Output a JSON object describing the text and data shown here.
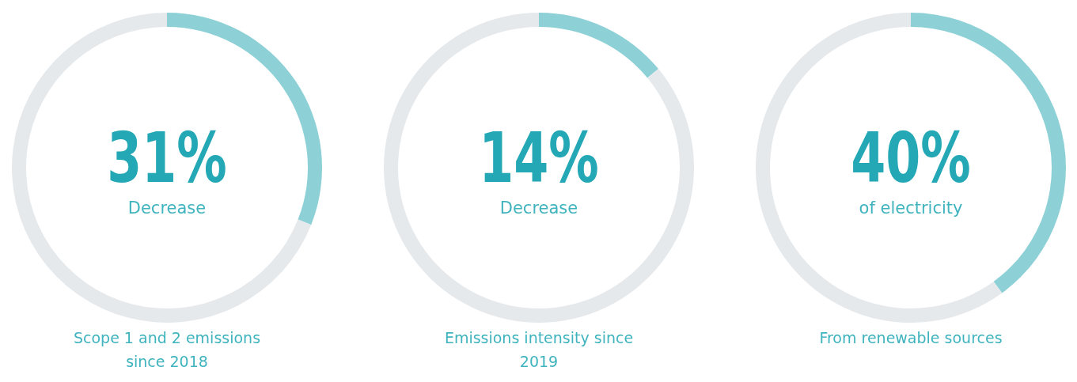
{
  "chart_data": [
    {
      "type": "donut",
      "categories": [
        null,
        null
      ],
      "values": [
        31,
        69
      ],
      "colors": [
        "#8dd1d7",
        "#e6e9ec"
      ],
      "value_labels": [
        "31%",
        null
      ],
      "subtitle": "Decrease",
      "annotations": [
        "Scope 1 and 2 emissions since 2018"
      ]
    },
    {
      "type": "donut",
      "categories": [
        null,
        null
      ],
      "values": [
        14,
        86
      ],
      "colors": [
        "#8dd1d7",
        "#e6e9ec"
      ],
      "value_labels": [
        "14%",
        null
      ],
      "subtitle": "Decrease",
      "annotations": [
        "Emissions intensity since 2019"
      ]
    },
    {
      "type": "donut",
      "categories": [
        null,
        null
      ],
      "values": [
        40,
        60
      ],
      "colors": [
        "#8dd1d7",
        "#e6e9ec"
      ],
      "value_labels": [
        "40%",
        null
      ],
      "subtitle": "of electricity",
      "annotations": [
        "From renewable sources"
      ]
    }
  ]
}
